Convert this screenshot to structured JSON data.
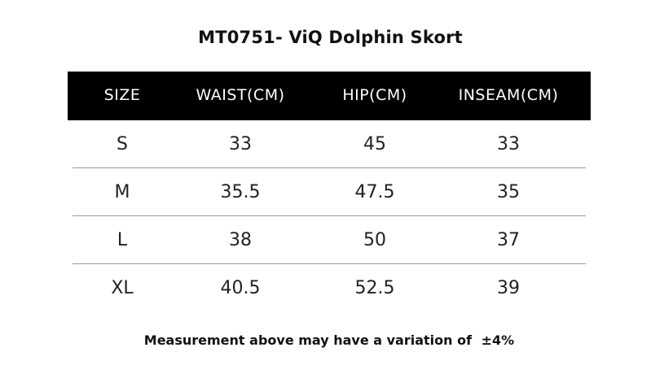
{
  "title": "MT0751- ViQ Dolphin Skort",
  "table": {
    "headers": [
      "SIZE",
      "WAIST(CM)",
      "HIP(CM)",
      "INSEAM(CM)"
    ],
    "rows": [
      [
        "S",
        "33",
        "45",
        "33"
      ],
      [
        "M",
        "35.5",
        "47.5",
        "35"
      ],
      [
        "L",
        "38",
        "50",
        "37"
      ],
      [
        "XL",
        "40.5",
        "52.5",
        "39"
      ]
    ]
  },
  "footer": {
    "note": "Measurement above may have a variation of",
    "tolerance": "±4%"
  },
  "colors": {
    "header_background": "#000000",
    "header_text": "#ffffff",
    "divider": "#9a9a9a"
  }
}
